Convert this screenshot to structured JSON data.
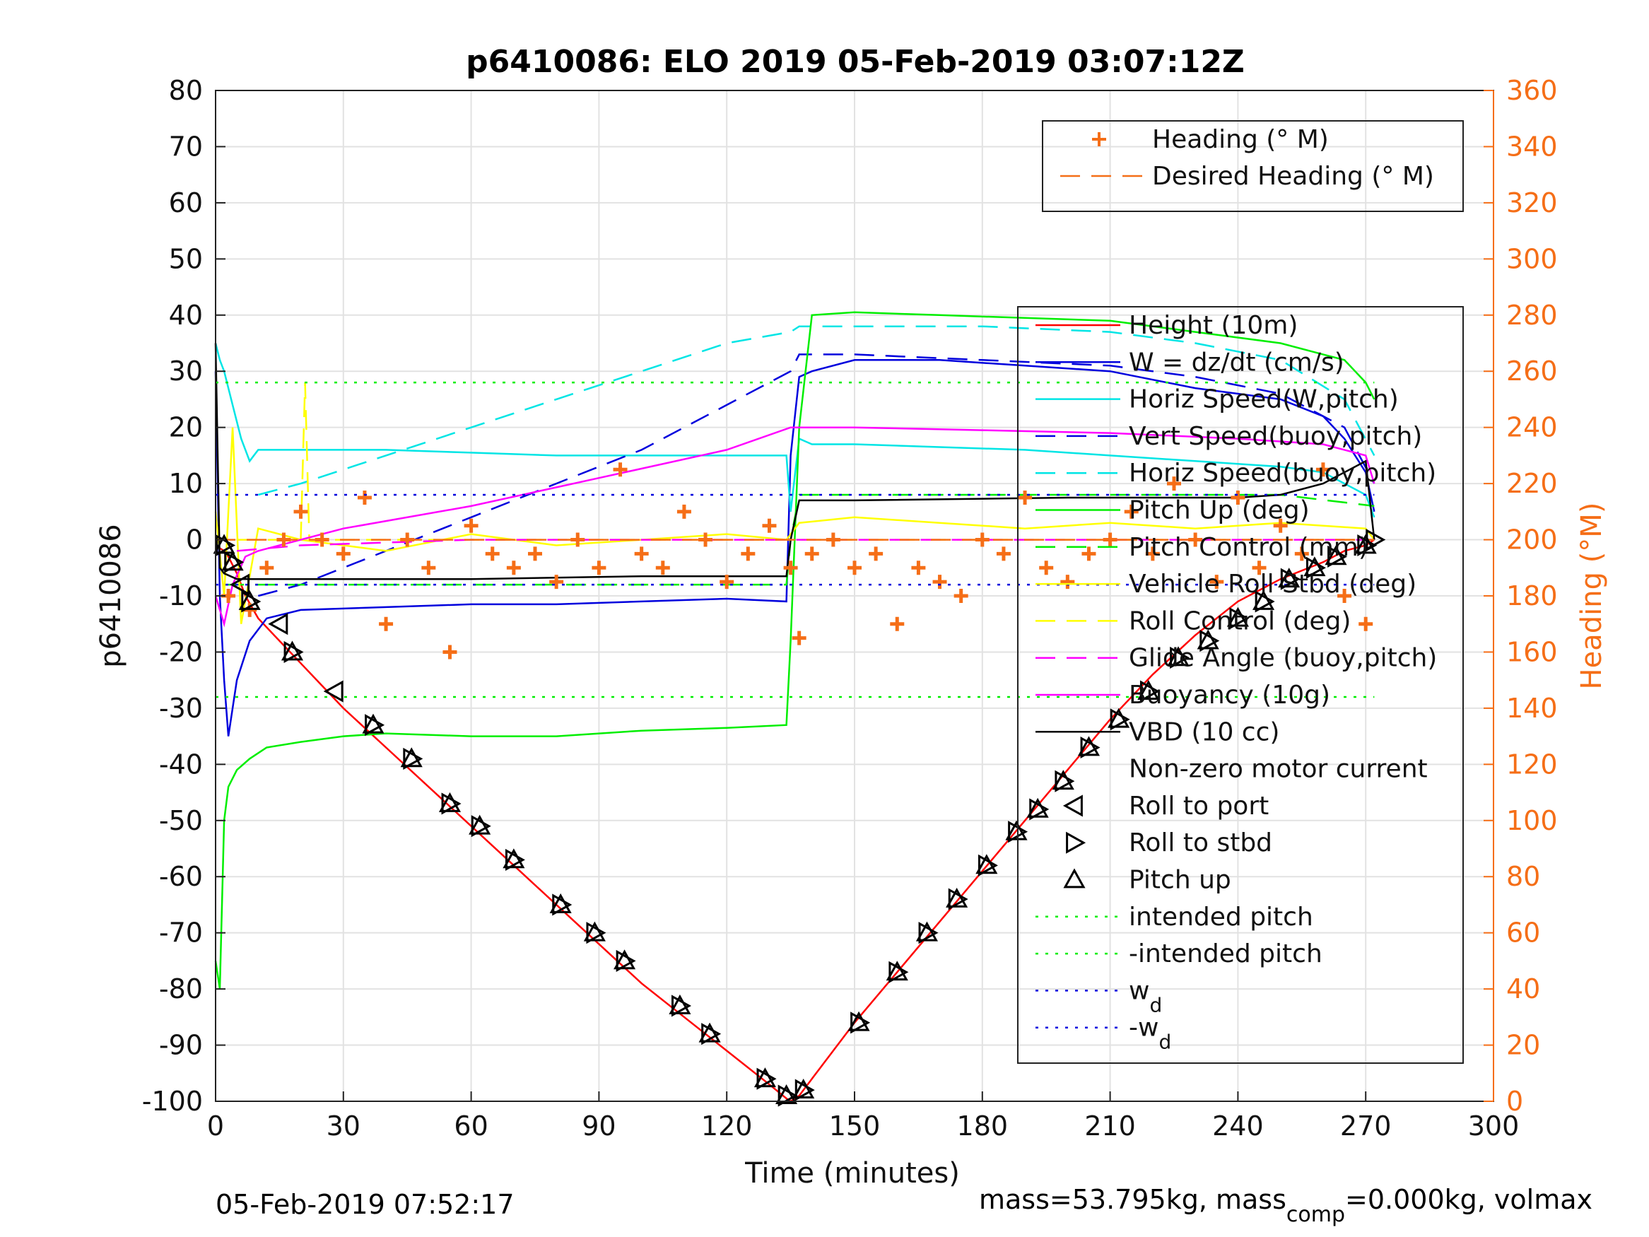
{
  "chart_data": {
    "type": "line",
    "title": "p6410086: ELO 2019 05-Feb-2019 03:07:12Z",
    "xlabel": "Time (minutes)",
    "ylabel": "p6410086",
    "ylabel_right": "Heading (°M)",
    "xlim": [
      0,
      300
    ],
    "ylim": [
      -100,
      80
    ],
    "ylim_right": [
      0,
      360
    ],
    "x_ticks": [
      "0",
      "30",
      "60",
      "90",
      "120",
      "150",
      "180",
      "210",
      "240",
      "270",
      "300"
    ],
    "y_ticks": [
      "80",
      "70",
      "60",
      "50",
      "40",
      "30",
      "20",
      "10",
      "0",
      "-10",
      "-20",
      "-30",
      "-40",
      "-50",
      "-60",
      "-70",
      "-80",
      "-90",
      "-100"
    ],
    "y_right_ticks": [
      "360",
      "340",
      "320",
      "300",
      "280",
      "260",
      "240",
      "220",
      "200",
      "180",
      "160",
      "140",
      "120",
      "100",
      "80",
      "60",
      "40",
      "20",
      "0"
    ],
    "grid": true,
    "footer_left": "05-Feb-2019 07:52:17",
    "footer_right": {
      "a": "mass=53.795kg, mass",
      "sub": "comp",
      "b": "=0.000kg, volmax"
    },
    "legend_heading": [
      {
        "label": "Heading (° M)",
        "color": "#f56e17",
        "style": "plus"
      },
      {
        "label": "Desired Heading (° M)",
        "color": "#f56e17",
        "style": "dash"
      }
    ],
    "legend_main": [
      {
        "label": "Height (10m)",
        "color": "#ff0000",
        "style": "solid"
      },
      {
        "label": "W = dz/dt (cm/s)",
        "color": "#0000dd",
        "style": "solid"
      },
      {
        "label": "Horiz Speed(W,pitch)",
        "color": "#00e5e5",
        "style": "solid"
      },
      {
        "label": "Vert Speed(buoy,pitch)",
        "color": "#0000dd",
        "style": "dash"
      },
      {
        "label": "Horiz Speed(buoy,pitch)",
        "color": "#00e5e5",
        "style": "dash"
      },
      {
        "label": "Pitch Up (deg)",
        "color": "#00ee00",
        "style": "solid"
      },
      {
        "label": "Pitch Control (mm)",
        "color": "#00ee00",
        "style": "dash"
      },
      {
        "label": "Vehicle Roll Stbd (deg)",
        "color": "#ffff00",
        "style": "solid"
      },
      {
        "label": "Roll Control (deg)",
        "color": "#ffff00",
        "style": "dash"
      },
      {
        "label": "Glide Angle (buoy,pitch)",
        "color": "#ff00ff",
        "style": "dash"
      },
      {
        "label": "Buoyancy (10g)",
        "color": "#ff00ff",
        "style": "solid"
      },
      {
        "label": "VBD (10 cc)",
        "color": "#000000",
        "style": "solid"
      },
      {
        "label": "Non-zero motor current",
        "color": "#000000",
        "style": "none"
      },
      {
        "label": "Roll to port",
        "color": "#000000",
        "style": "tri-left"
      },
      {
        "label": "Roll to stbd",
        "color": "#000000",
        "style": "tri-right"
      },
      {
        "label": "Pitch up",
        "color": "#000000",
        "style": "tri-up"
      },
      {
        "label": "intended pitch",
        "color": "#00ee00",
        "style": "dot"
      },
      {
        "label": "-intended pitch",
        "color": "#00ee00",
        "style": "dot"
      },
      {
        "label": "w",
        "sub": "d",
        "color": "#0000dd",
        "style": "dot"
      },
      {
        "label": "-w",
        "sub": "d",
        "color": "#0000dd",
        "style": "dot"
      }
    ],
    "series": [
      {
        "name": "Height (10m)",
        "color": "#ff0000",
        "axis": "left",
        "x": [
          0,
          1,
          2,
          3,
          5,
          7,
          10,
          15,
          20,
          25,
          30,
          40,
          50,
          60,
          70,
          80,
          90,
          100,
          110,
          120,
          130,
          134,
          135,
          137,
          140,
          150,
          160,
          170,
          180,
          190,
          200,
          210,
          220,
          230,
          240,
          250,
          260,
          265,
          270,
          272
        ],
        "y": [
          -1,
          -1.5,
          -2,
          -3,
          -6,
          -10,
          -14,
          -18,
          -22,
          -26,
          -30,
          -37,
          -44,
          -51,
          -58,
          -65,
          -72,
          -79,
          -85,
          -91,
          -97,
          -99.5,
          -100,
          -99,
          -96,
          -86,
          -77,
          -68,
          -59,
          -50,
          -41,
          -32,
          -24,
          -17,
          -11,
          -7,
          -4,
          -2,
          -1,
          0
        ]
      },
      {
        "name": "W = dz/dt (cm/s)",
        "color": "#0000dd",
        "axis": "left",
        "x": [
          0,
          1,
          2,
          3,
          5,
          8,
          12,
          20,
          40,
          60,
          80,
          100,
          120,
          134,
          135,
          137,
          140,
          150,
          170,
          190,
          210,
          230,
          250,
          260,
          265,
          270,
          272
        ],
        "y": [
          30,
          -10,
          -25,
          -35,
          -25,
          -18,
          -14,
          -12.5,
          -12,
          -11.5,
          -11.5,
          -11,
          -10.5,
          -11,
          15,
          29,
          30,
          32,
          32,
          31,
          30,
          27,
          25,
          22,
          18,
          12,
          5
        ]
      },
      {
        "name": "Horiz Speed(W,pitch)",
        "color": "#00e5e5",
        "axis": "left",
        "x": [
          0,
          1,
          2,
          4,
          6,
          8,
          10,
          20,
          40,
          60,
          80,
          100,
          120,
          134,
          135,
          137,
          140,
          150,
          170,
          190,
          210,
          230,
          250,
          260,
          265,
          270,
          272
        ],
        "y": [
          35,
          32,
          30,
          24,
          18,
          14,
          16,
          16,
          16,
          15.5,
          15,
          15,
          15,
          15,
          5,
          18,
          17,
          17,
          16.5,
          16,
          15,
          14,
          13,
          12,
          10,
          8,
          4
        ]
      },
      {
        "name": "Vert Speed(buoy,pitch)",
        "color": "#0000dd",
        "axis": "left",
        "style": "dash",
        "x": [
          10,
          20,
          40,
          60,
          80,
          100,
          120,
          135,
          137,
          150,
          180,
          210,
          230,
          250,
          265,
          272
        ],
        "y": [
          -10,
          -8,
          -2,
          4,
          10,
          16,
          24,
          30,
          33,
          33,
          32,
          31,
          29,
          26,
          20,
          10
        ]
      },
      {
        "name": "Horiz Speed(buoy,pitch)",
        "color": "#00e5e5",
        "axis": "left",
        "style": "dash",
        "x": [
          10,
          20,
          40,
          60,
          80,
          100,
          120,
          135,
          137,
          150,
          180,
          210,
          230,
          250,
          265,
          272
        ],
        "y": [
          8,
          10,
          15,
          20,
          25,
          30,
          35,
          37,
          38,
          38,
          38,
          37,
          35,
          32,
          25,
          15
        ]
      },
      {
        "name": "Pitch Up (deg)",
        "color": "#00ee00",
        "axis": "left",
        "x": [
          0,
          1,
          2,
          3,
          5,
          8,
          12,
          20,
          30,
          40,
          60,
          80,
          100,
          120,
          134,
          135,
          137,
          140,
          150,
          170,
          190,
          210,
          230,
          250,
          260,
          265,
          270,
          272
        ],
        "y": [
          -75,
          -80,
          -50,
          -44,
          -41,
          -39,
          -37,
          -36,
          -35,
          -34.5,
          -35,
          -35,
          -34,
          -33.5,
          -33,
          -18,
          20,
          40,
          40.5,
          40,
          39.5,
          39,
          37,
          35,
          33,
          32,
          28,
          25
        ]
      },
      {
        "name": "Pitch Control (mm)",
        "color": "#00ee00",
        "axis": "left",
        "style": "dash",
        "x": [
          2,
          20,
          60,
          100,
          134,
          135,
          137,
          200,
          250,
          272
        ],
        "y": [
          -8,
          -8,
          -8,
          -8,
          -8,
          0,
          8,
          8,
          8,
          6
        ]
      },
      {
        "name": "Vehicle Roll Stbd (deg)",
        "color": "#ffff00",
        "axis": "left",
        "x": [
          0,
          2,
          4,
          6,
          10,
          20,
          40,
          60,
          80,
          100,
          120,
          134,
          137,
          150,
          170,
          190,
          210,
          230,
          250,
          270,
          272
        ],
        "y": [
          5,
          -10,
          20,
          -15,
          2,
          0,
          -2,
          1,
          -1,
          0,
          1,
          0,
          3,
          4,
          3,
          2,
          3,
          2,
          3,
          2,
          0
        ]
      },
      {
        "name": "Roll Control (deg)",
        "color": "#ffff00",
        "axis": "left",
        "style": "dash",
        "x": [
          5,
          20,
          21,
          22,
          60,
          100,
          134,
          137,
          200,
          272
        ],
        "y": [
          0,
          0,
          28,
          0,
          0,
          0,
          0,
          0,
          0,
          0
        ]
      },
      {
        "name": "Glide Angle (buoy,pitch)",
        "color": "#ff00ff",
        "axis": "left",
        "style": "dash",
        "x": [
          5,
          20,
          60,
          100,
          134,
          135,
          137,
          200,
          250,
          272
        ],
        "y": [
          -2,
          -1,
          0,
          0,
          0,
          0,
          0,
          0,
          0,
          0
        ]
      },
      {
        "name": "Buoyancy (10g)",
        "color": "#ff00ff",
        "axis": "left",
        "x": [
          0,
          2,
          4,
          7,
          10,
          30,
          60,
          90,
          120,
          135,
          137,
          150,
          180,
          210,
          240,
          260,
          270,
          272
        ],
        "y": [
          -10,
          -15,
          -8,
          -3,
          -2,
          2,
          6,
          11,
          16,
          20,
          20,
          20,
          19.5,
          19,
          18,
          17,
          15,
          10
        ]
      },
      {
        "name": "VBD (10 cc)",
        "color": "#000000",
        "axis": "left",
        "x": [
          0,
          1,
          2,
          5,
          10,
          20,
          60,
          100,
          134,
          135,
          137,
          150,
          200,
          240,
          250,
          260,
          265,
          270,
          272
        ],
        "y": [
          35,
          -5,
          -6,
          -7,
          -7,
          -7,
          -7,
          -6.5,
          -6.5,
          0,
          7,
          7,
          7.5,
          7.5,
          8,
          10,
          12,
          14,
          0
        ]
      },
      {
        "name": "Heading (° M)",
        "color": "#f56e17",
        "axis": "right",
        "style": "plus",
        "x": [
          3,
          8,
          12,
          16,
          20,
          25,
          30,
          35,
          40,
          45,
          50,
          55,
          60,
          65,
          70,
          75,
          80,
          85,
          90,
          95,
          100,
          105,
          110,
          115,
          120,
          125,
          130,
          135,
          137,
          140,
          145,
          150,
          155,
          160,
          165,
          170,
          175,
          180,
          185,
          190,
          195,
          200,
          205,
          210,
          215,
          220,
          225,
          230,
          235,
          240,
          245,
          250,
          255,
          260,
          265,
          270
        ],
        "y": [
          180,
          175,
          190,
          200,
          210,
          200,
          195,
          215,
          170,
          200,
          190,
          160,
          205,
          195,
          190,
          195,
          185,
          200,
          190,
          225,
          195,
          190,
          210,
          200,
          185,
          195,
          205,
          190,
          165,
          195,
          200,
          190,
          195,
          170,
          190,
          185,
          180,
          200,
          195,
          215,
          190,
          185,
          195,
          200,
          210,
          195,
          220,
          200,
          185,
          215,
          190,
          205,
          195,
          225,
          180,
          170
        ]
      },
      {
        "name": "Desired Heading (° M)",
        "color": "#f56e17",
        "axis": "right",
        "style": "dash",
        "x": [
          0,
          272
        ],
        "y": [
          200,
          200
        ]
      },
      {
        "name": "intended pitch",
        "color": "#00ee00",
        "axis": "left",
        "style": "dot",
        "x": [
          0,
          272
        ],
        "y": [
          28,
          28
        ]
      },
      {
        "name": "-intended pitch",
        "color": "#00ee00",
        "axis": "left",
        "style": "dot",
        "x": [
          0,
          272
        ],
        "y": [
          -28,
          -28
        ]
      },
      {
        "name": "w_d",
        "color": "#0000dd",
        "axis": "left",
        "style": "dot",
        "x": [
          0,
          272
        ],
        "y": [
          8,
          8
        ]
      },
      {
        "name": "-w_d",
        "color": "#0000dd",
        "axis": "left",
        "style": "dot",
        "x": [
          0,
          272
        ],
        "y": [
          -8,
          -8
        ]
      }
    ],
    "markers": {
      "roll_to_port": [
        [
          28,
          -27
        ],
        [
          15,
          -15
        ],
        [
          6,
          -8
        ]
      ],
      "roll_to_stbd": [
        [
          2,
          -1
        ],
        [
          4,
          -4
        ],
        [
          8,
          -11
        ],
        [
          18,
          -20
        ],
        [
          37,
          -33
        ],
        [
          46,
          -39
        ],
        [
          55,
          -47
        ],
        [
          62,
          -51
        ],
        [
          70,
          -57
        ],
        [
          81,
          -65
        ],
        [
          89,
          -70
        ],
        [
          96,
          -75
        ],
        [
          109,
          -83
        ],
        [
          116,
          -88
        ],
        [
          129,
          -96
        ],
        [
          134,
          -99
        ],
        [
          138,
          -98
        ],
        [
          151,
          -86
        ],
        [
          160,
          -77
        ],
        [
          167,
          -70
        ],
        [
          174,
          -64
        ],
        [
          181,
          -58
        ],
        [
          188,
          -52
        ],
        [
          193,
          -48
        ],
        [
          199,
          -43
        ],
        [
          205,
          -37
        ],
        [
          212,
          -32
        ],
        [
          219,
          -27
        ],
        [
          226,
          -21
        ],
        [
          233,
          -18
        ],
        [
          240,
          -14
        ],
        [
          246,
          -11
        ],
        [
          252,
          -7
        ],
        [
          258,
          -5
        ],
        [
          263,
          -3
        ],
        [
          270,
          -1
        ],
        [
          272,
          0
        ]
      ],
      "pitch_up": [
        [
          2,
          -1
        ],
        [
          4,
          -4
        ],
        [
          8,
          -11
        ],
        [
          18,
          -20
        ],
        [
          37,
          -33
        ],
        [
          46,
          -39
        ],
        [
          55,
          -47
        ],
        [
          62,
          -51
        ],
        [
          70,
          -57
        ],
        [
          81,
          -65
        ],
        [
          89,
          -70
        ],
        [
          96,
          -75
        ],
        [
          109,
          -83
        ],
        [
          116,
          -88
        ],
        [
          129,
          -96
        ],
        [
          134,
          -99
        ],
        [
          138,
          -98
        ],
        [
          151,
          -86
        ],
        [
          160,
          -77
        ],
        [
          167,
          -70
        ],
        [
          174,
          -64
        ],
        [
          181,
          -58
        ],
        [
          188,
          -52
        ],
        [
          193,
          -48
        ],
        [
          199,
          -43
        ],
        [
          205,
          -37
        ],
        [
          212,
          -32
        ],
        [
          219,
          -27
        ],
        [
          226,
          -21
        ],
        [
          233,
          -18
        ],
        [
          240,
          -14
        ],
        [
          246,
          -11
        ],
        [
          252,
          -7
        ],
        [
          258,
          -5
        ],
        [
          263,
          -3
        ],
        [
          270,
          -1
        ]
      ]
    }
  }
}
